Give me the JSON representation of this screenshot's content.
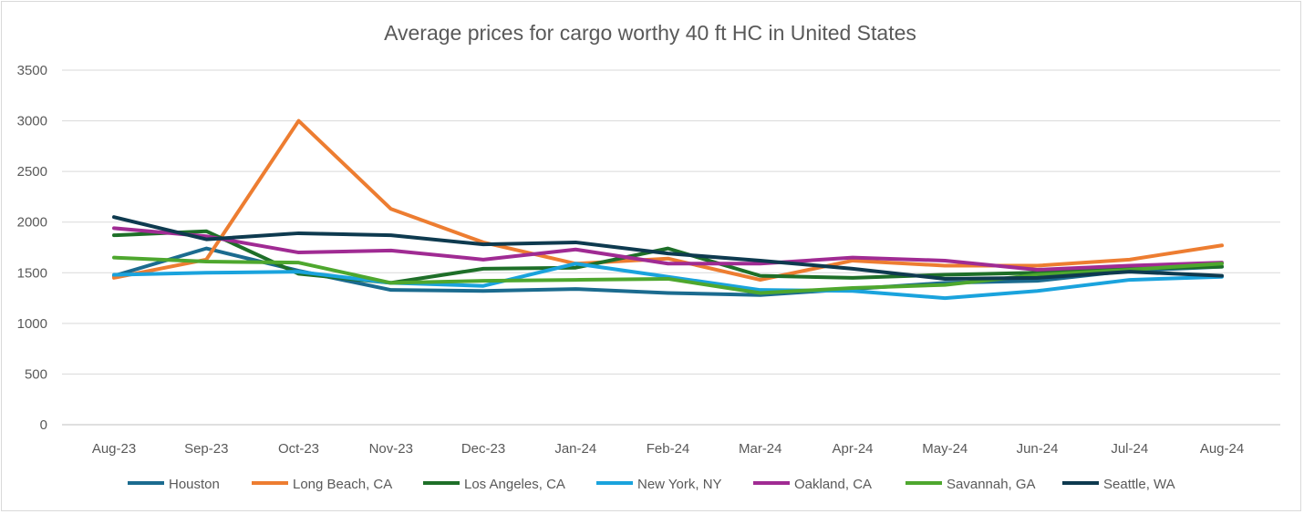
{
  "chart_data": {
    "type": "line",
    "title": "Average prices for cargo worthy 40 ft HC in United States",
    "xlabel": "",
    "ylabel": "",
    "ylim": [
      0,
      3500
    ],
    "yticks": [
      0,
      500,
      1000,
      1500,
      2000,
      2500,
      3000,
      3500
    ],
    "grid": true,
    "legend_position": "bottom",
    "categories": [
      "Aug-23",
      "Sep-23",
      "Oct-23",
      "Nov-23",
      "Dec-23",
      "Jan-24",
      "Feb-24",
      "Mar-24",
      "Apr-24",
      "May-24",
      "Jun-24",
      "Jul-24",
      "Aug-24"
    ],
    "series": [
      {
        "name": "Houston",
        "color": "#1b6b8f",
        "values": [
          1470,
          1740,
          1520,
          1330,
          1320,
          1340,
          1300,
          1280,
          1340,
          1400,
          1420,
          1520,
          1560
        ]
      },
      {
        "name": "Long Beach, CA",
        "color": "#ed7d31",
        "values": [
          1450,
          1630,
          3000,
          2130,
          1800,
          1590,
          1640,
          1430,
          1620,
          1570,
          1570,
          1630,
          1770
        ]
      },
      {
        "name": "Los Angeles, CA",
        "color": "#1e6f28",
        "values": [
          1870,
          1910,
          1490,
          1400,
          1540,
          1550,
          1740,
          1470,
          1450,
          1480,
          1500,
          1540,
          1560
        ]
      },
      {
        "name": "New York, NY",
        "color": "#1aa3dd",
        "values": [
          1480,
          1500,
          1510,
          1400,
          1370,
          1590,
          1460,
          1330,
          1320,
          1250,
          1320,
          1430,
          1460
        ]
      },
      {
        "name": "Oakland, CA",
        "color": "#a02b93",
        "values": [
          1940,
          1860,
          1700,
          1720,
          1630,
          1730,
          1590,
          1590,
          1650,
          1620,
          1530,
          1570,
          1600
        ]
      },
      {
        "name": "Savannah, GA",
        "color": "#4ea72e",
        "values": [
          1650,
          1610,
          1600,
          1400,
          1420,
          1430,
          1440,
          1300,
          1350,
          1380,
          1480,
          1530,
          1590
        ]
      },
      {
        "name": "Seattle, WA",
        "color": "#0e3a4f",
        "values": [
          2050,
          1830,
          1890,
          1870,
          1780,
          1800,
          1690,
          1620,
          1540,
          1440,
          1450,
          1510,
          1470
        ]
      }
    ]
  }
}
